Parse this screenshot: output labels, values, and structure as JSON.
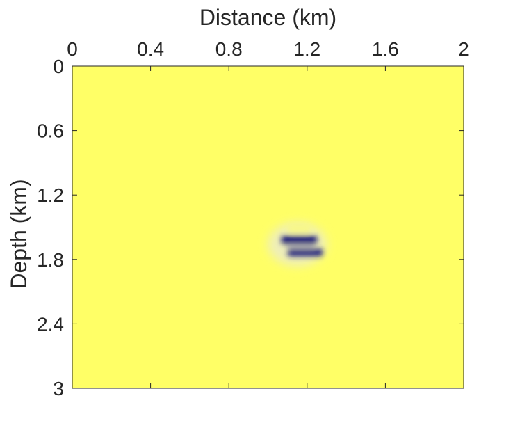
{
  "chart_data": {
    "type": "heatmap",
    "title": "",
    "xlabel": "Distance (km)",
    "ylabel": "Depth (km)",
    "xlim": [
      0,
      2
    ],
    "ylim": [
      0,
      3
    ],
    "y_reversed": true,
    "x_axis_position": "top",
    "grid": false,
    "x_ticks": [
      "0",
      "0.4",
      "0.8",
      "1.2",
      "1.6",
      "2"
    ],
    "x_tick_values": [
      0,
      0.4,
      0.8,
      1.2,
      1.6,
      2
    ],
    "y_ticks": [
      "0",
      "0.6",
      "1.2",
      "1.8",
      "2.4",
      "3"
    ],
    "y_tick_values": [
      0,
      0.6,
      1.2,
      1.8,
      2.4,
      3
    ],
    "colormap": {
      "low": "#ffff66",
      "high": "#0a0a78"
    },
    "background_value": 0,
    "anomaly": {
      "center_distance_km": 1.15,
      "center_depth_km": 1.66,
      "bands": [
        {
          "distance_km": [
            1.07,
            1.25
          ],
          "depth_km": [
            1.58,
            1.66
          ],
          "value": 1.0
        },
        {
          "distance_km": [
            1.1,
            1.28
          ],
          "depth_km": [
            1.7,
            1.77
          ],
          "value": 0.95
        },
        {
          "distance_km": [
            1.09,
            1.24
          ],
          "depth_km": [
            1.66,
            1.7
          ],
          "value": 0.45
        },
        {
          "distance_km": [
            1.1,
            1.22
          ],
          "depth_km": [
            1.47,
            1.55
          ],
          "value": 0.12
        }
      ]
    }
  }
}
